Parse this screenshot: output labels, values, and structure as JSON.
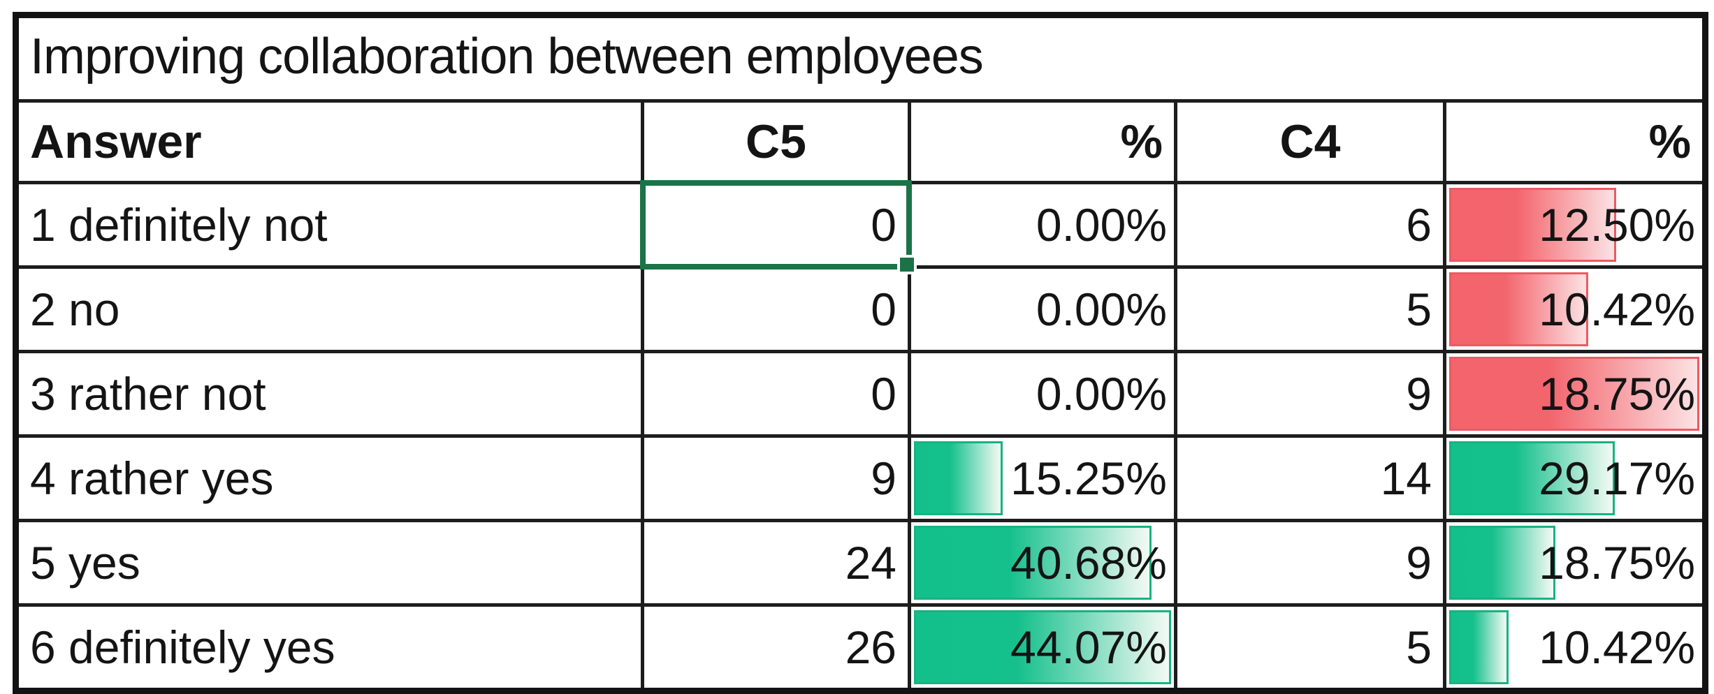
{
  "title": "Improving collaboration between employees",
  "columns": {
    "answer": "Answer",
    "c5": "C5",
    "c5_pct": "%",
    "c4": "C4",
    "c4_pct": "%"
  },
  "selection": {
    "cellref": "0,c5_count",
    "has_fill_handle": true
  },
  "colors": {
    "bar_red_solid": "#f3646c",
    "bar_red_light": "#fbdcde",
    "bar_red_border": "#ec5a64",
    "bar_green_solid": "#13bf8b",
    "bar_green_light": "#e9f7f0",
    "bar_green_border": "#17b381",
    "selection_green": "#1b7347",
    "grid_black": "#1d1d1d"
  },
  "rows": [
    {
      "label": "1 definitely not",
      "c5": {
        "count": "0",
        "pct": "0.00%",
        "bar": null
      },
      "c4": {
        "count": "6",
        "pct": "12.50%",
        "bar": {
          "color": "red",
          "fraction": 0.667
        }
      }
    },
    {
      "label": "2 no",
      "c5": {
        "count": "0",
        "pct": "0.00%",
        "bar": null
      },
      "c4": {
        "count": "5",
        "pct": "10.42%",
        "bar": {
          "color": "red",
          "fraction": 0.556
        }
      }
    },
    {
      "label": "3 rather not",
      "c5": {
        "count": "0",
        "pct": "0.00%",
        "bar": null
      },
      "c4": {
        "count": "9",
        "pct": "18.75%",
        "bar": {
          "color": "red",
          "fraction": 1.0
        }
      }
    },
    {
      "label": "4 rather yes",
      "c5": {
        "count": "9",
        "pct": "15.25%",
        "bar": {
          "color": "green",
          "fraction": 0.346
        }
      },
      "c4": {
        "count": "14",
        "pct": "29.17%",
        "bar": {
          "color": "green",
          "fraction": 0.662
        }
      }
    },
    {
      "label": "5 yes",
      "c5": {
        "count": "24",
        "pct": "40.68%",
        "bar": {
          "color": "green",
          "fraction": 0.923
        }
      },
      "c4": {
        "count": "9",
        "pct": "18.75%",
        "bar": {
          "color": "green",
          "fraction": 0.425
        }
      }
    },
    {
      "label": "6 definitely yes",
      "c5": {
        "count": "26",
        "pct": "44.07%",
        "bar": {
          "color": "green",
          "fraction": 1.0
        }
      },
      "c4": {
        "count": "5",
        "pct": "10.42%",
        "bar": {
          "color": "green",
          "fraction": 0.236
        }
      }
    }
  ]
}
